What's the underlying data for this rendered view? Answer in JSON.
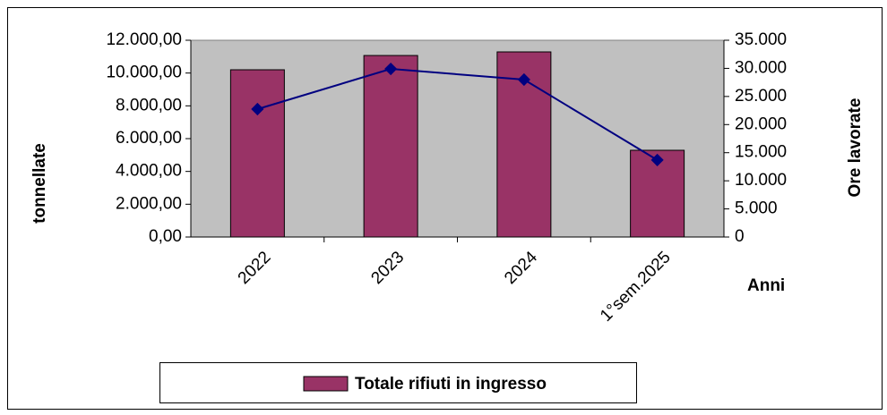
{
  "chart_data": {
    "type": "bar",
    "categories": [
      "2022",
      "2023",
      "2024",
      "1°sem.2025"
    ],
    "series": [
      {
        "name": "Totale rifiuti in ingresso",
        "color": "#993366",
        "values": [
          10200,
          11070,
          11290,
          5290
        ]
      },
      {
        "type": "line",
        "axis": "y2",
        "color": "#000080",
        "values": [
          22750,
          29900,
          28000,
          13700
        ]
      }
    ],
    "ylabel": "tonnellate",
    "y2label": "Ore lavorate",
    "xlabel": "Anni",
    "ylim": [
      0,
      12000
    ],
    "yticks": [
      {
        "value": 0,
        "label": "0,00"
      },
      {
        "value": 2000,
        "label": "2.000,00"
      },
      {
        "value": 4000,
        "label": "4.000,00"
      },
      {
        "value": 6000,
        "label": "6.000,00"
      },
      {
        "value": 8000,
        "label": "8.000,00"
      },
      {
        "value": 10000,
        "label": "10.000,00"
      },
      {
        "value": 12000,
        "label": "12.000,00"
      }
    ],
    "y2lim": [
      0,
      35000
    ],
    "y2ticks": [
      0,
      {
        "value": 5000,
        "label": "5.000"
      },
      {
        "value": 10000,
        "label": "10.000"
      },
      {
        "value": 15000,
        "label": "15.000"
      },
      {
        "value": 20000,
        "label": "20.000"
      },
      {
        "value": 25000,
        "label": "25.000"
      },
      {
        "value": 30000,
        "label": "30.000"
      },
      {
        "value": 35000,
        "label": "35.000"
      }
    ],
    "plot_background": "#c0c0c0",
    "legend": "bottom"
  }
}
